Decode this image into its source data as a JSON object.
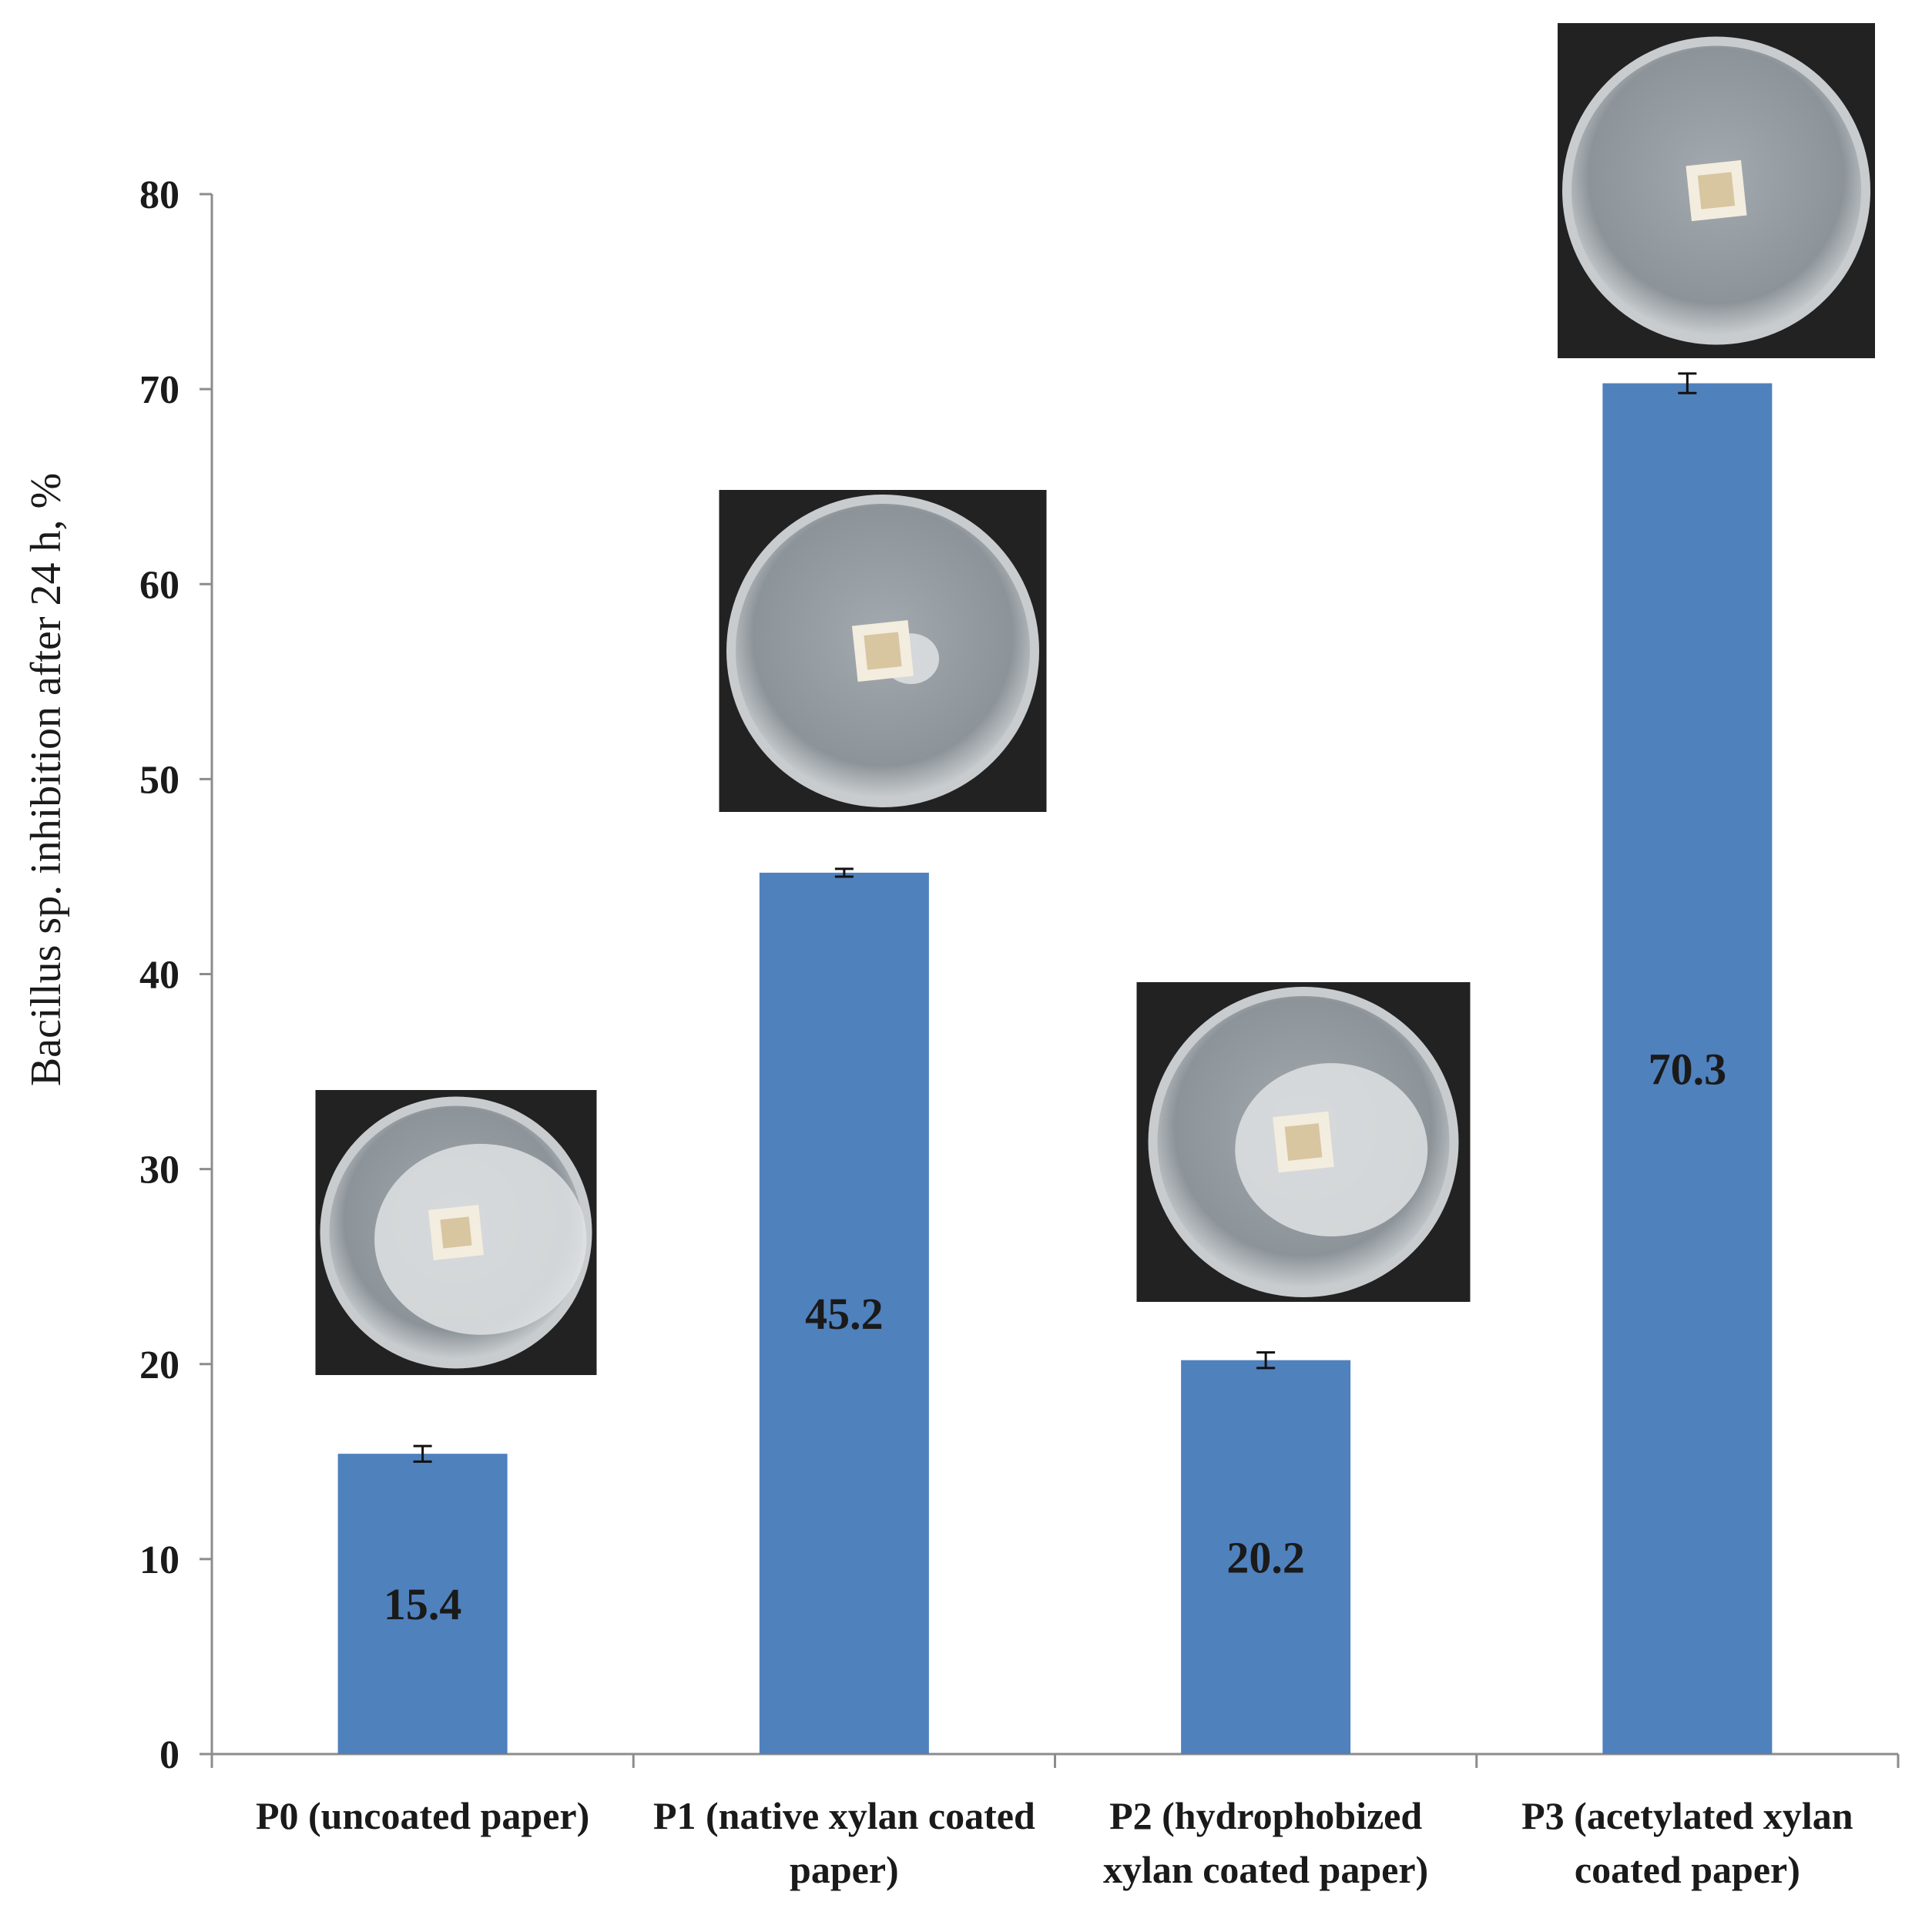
{
  "chart_data": {
    "type": "bar",
    "title": "",
    "xlabel": "",
    "ylabel": "Bacillus sp. inhibition after 24 h, %",
    "ylim": [
      0,
      80
    ],
    "yticks": [
      0,
      10,
      20,
      30,
      40,
      50,
      60,
      70,
      80
    ],
    "categories": [
      [
        "P0 (uncoated paper)"
      ],
      [
        "P1 (native xylan coated",
        "paper)"
      ],
      [
        "P2 (hydrophobized",
        "xylan coated paper)"
      ],
      [
        "P3 (acetylated xylan",
        "coated paper)"
      ]
    ],
    "values": [
      15.4,
      45.2,
      20.2,
      70.3
    ],
    "errors": [
      0.4,
      0.2,
      0.4,
      0.5
    ],
    "data_labels": [
      "15.4",
      "45.2",
      "20.2",
      "70.3"
    ],
    "photo_insets": [
      "petri-dish-photo-p0",
      "petri-dish-photo-p1",
      "petri-dish-photo-p2",
      "petri-dish-photo-p3"
    ],
    "grid": false,
    "colors": {
      "bar": "#4F81BD",
      "axis": "#8c8c8c",
      "photo_bg": "#222222"
    }
  }
}
